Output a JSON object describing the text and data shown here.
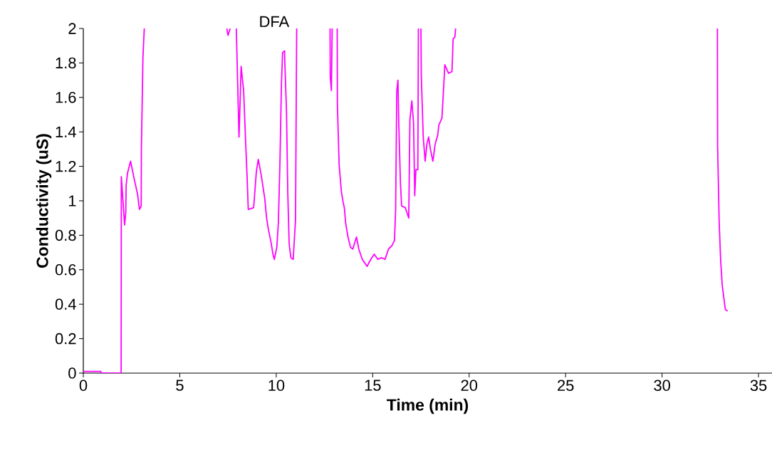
{
  "chart_data": {
    "type": "line",
    "xlabel": "Time (min)",
    "ylabel": "Conductivity (uS)",
    "annotations": [
      "DFA"
    ],
    "xlim": [
      0,
      35.7
    ],
    "ylim": [
      0,
      2
    ],
    "xticks": [
      0,
      5,
      10,
      15,
      20,
      25,
      30,
      35
    ],
    "yticks": [
      0,
      {
        "value": 0.2,
        "label": "0.2"
      },
      {
        "value": 0.4,
        "label": "0.4"
      },
      {
        "value": 0.6,
        "label": "0.6"
      },
      {
        "value": 0.8,
        "label": "0.8"
      },
      1,
      {
        "value": 1.2,
        "label": "1.2"
      },
      {
        "value": 1.4,
        "label": "1.4"
      },
      {
        "value": 1.6,
        "label": "1.6"
      },
      {
        "value": 1.8,
        "label": "1.8"
      },
      2
    ],
    "grid": false,
    "marker": "none",
    "line_style": "solid",
    "series": [
      {
        "color": "#ff00ff",
        "x": [
          0,
          0.91,
          0.92,
          1.96,
          1.97,
          2.14,
          2.2,
          2.22,
          2.29,
          2.45,
          2.63,
          2.81,
          2.91,
          3.0,
          3.01,
          3.09,
          3.16,
          5.0,
          7.44,
          7.5,
          7.61,
          7.8,
          7.93,
          8.05,
          8.07,
          8.1,
          8.18,
          8.31,
          8.4,
          8.5,
          8.55,
          8.83,
          8.97,
          9.07,
          9.22,
          9.41,
          9.5,
          9.6,
          9.73,
          9.83,
          9.9,
          10.03,
          10.11,
          10.19,
          10.27,
          10.33,
          10.43,
          10.45,
          10.53,
          10.6,
          10.67,
          10.76,
          10.88,
          10.91,
          11.0,
          11.06,
          12.0,
          12.79,
          12.8,
          12.86,
          12.9,
          13.0,
          13.16,
          13.17,
          13.26,
          13.38,
          13.47,
          13.53,
          13.6,
          13.72,
          13.85,
          13.97,
          14.16,
          14.28,
          14.46,
          14.71,
          14.9,
          15.08,
          15.27,
          15.45,
          15.64,
          15.82,
          16.0,
          16.13,
          16.19,
          16.25,
          16.31,
          16.35,
          16.44,
          16.5,
          16.69,
          16.87,
          16.93,
          17.03,
          17.12,
          17.18,
          17.24,
          17.34,
          17.37,
          17.45,
          17.5,
          17.52,
          17.62,
          17.72,
          17.81,
          17.9,
          17.99,
          18.12,
          18.24,
          18.37,
          18.43,
          18.59,
          18.68,
          18.74,
          18.93,
          19.11,
          19.17,
          19.26,
          19.3,
          25.0,
          32.87,
          32.88,
          32.96,
          33.04,
          33.12,
          33.2,
          33.28,
          33.4
        ],
        "values": [
          0.01,
          0.01,
          0,
          0,
          1.14,
          0.86,
          0.93,
          1.09,
          1.16,
          1.23,
          1.13,
          1.04,
          0.95,
          0.97,
          1.3,
          1.83,
          2,
          null,
          2,
          1.96,
          2,
          null,
          2,
          1.46,
          1.37,
          1.47,
          1.78,
          1.64,
          1.38,
          1.11,
          0.95,
          0.96,
          1.17,
          1.24,
          1.15,
          1.01,
          0.9,
          0.83,
          0.76,
          0.69,
          0.66,
          0.73,
          0.87,
          1.21,
          1.68,
          1.86,
          1.87,
          1.79,
          1.53,
          1.04,
          0.75,
          0.67,
          0.66,
          0.72,
          0.89,
          2,
          null,
          2,
          1.72,
          1.64,
          2,
          null,
          2,
          1.56,
          1.21,
          1.05,
          0.99,
          0.96,
          0.87,
          0.79,
          0.73,
          0.72,
          0.79,
          0.72,
          0.66,
          0.62,
          0.66,
          0.69,
          0.66,
          0.67,
          0.66,
          0.72,
          0.74,
          0.77,
          0.95,
          1.64,
          1.7,
          1.46,
          1.1,
          0.97,
          0.96,
          0.9,
          1.47,
          1.58,
          1.45,
          1.03,
          1.18,
          1.18,
          2,
          null,
          2,
          1.73,
          1.37,
          1.23,
          1.33,
          1.37,
          1.3,
          1.23,
          1.33,
          1.38,
          1.44,
          1.48,
          1.66,
          1.79,
          1.74,
          1.75,
          1.94,
          1.95,
          2,
          null,
          2,
          1.32,
          0.88,
          0.65,
          0.51,
          0.44,
          0.37,
          0.36
        ]
      }
    ]
  }
}
